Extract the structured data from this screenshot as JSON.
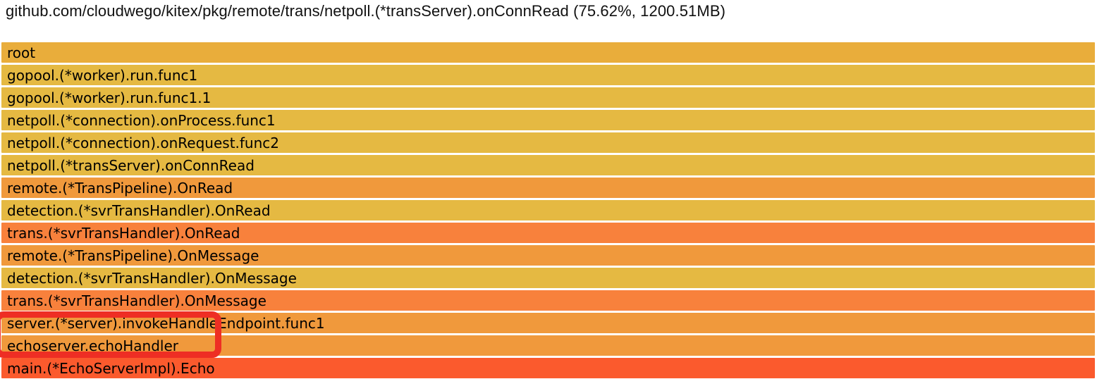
{
  "title": "github.com/cloudwego/kitex/pkg/remote/trans/netpoll.(*transServer).onConnRead (75.62%, 1200.51MB)",
  "colors": {
    "row_gold": "#e5b942",
    "row_root_gold": "#e9ad3b",
    "row_orange": "#f0993c",
    "row_deep_orange": "#f8813c",
    "row_red_orange": "#fb5a2d",
    "row_gap": "#f1ede0",
    "row_text": "#000000",
    "annotation_red": "#ee2e24",
    "background": "#ffffff"
  },
  "chart_data": {
    "type": "flamegraph",
    "title": "github.com/cloudwego/kitex/pkg/remote/trans/netpoll.(*transServer).onConnRead (75.62%, 1200.51MB)",
    "selected_frame": "github.com/cloudwego/kitex/pkg/remote/trans/netpoll.(*transServer).onConnRead",
    "selected_percent": 75.62,
    "selected_value": "1200.51MB",
    "orientation": "icicle-root-at-top",
    "legend_position": "none",
    "frames": [
      {
        "depth": 0,
        "label": "root",
        "width_pct": 100,
        "color": "#e9ad3b"
      },
      {
        "depth": 1,
        "label": "gopool.(*worker).run.func1",
        "width_pct": 100,
        "color": "#e5b942"
      },
      {
        "depth": 2,
        "label": "gopool.(*worker).run.func1.1",
        "width_pct": 100,
        "color": "#e5b942"
      },
      {
        "depth": 3,
        "label": "netpoll.(*connection).onProcess.func1",
        "width_pct": 100,
        "color": "#e5b942"
      },
      {
        "depth": 4,
        "label": "netpoll.(*connection).onRequest.func2",
        "width_pct": 100,
        "color": "#e5b942"
      },
      {
        "depth": 5,
        "label": "netpoll.(*transServer).onConnRead",
        "width_pct": 100,
        "color": "#e5b942"
      },
      {
        "depth": 6,
        "label": "remote.(*TransPipeline).OnRead",
        "width_pct": 100,
        "color": "#f0993c"
      },
      {
        "depth": 7,
        "label": "detection.(*svrTransHandler).OnRead",
        "width_pct": 100,
        "color": "#e5b942"
      },
      {
        "depth": 8,
        "label": "trans.(*svrTransHandler).OnRead",
        "width_pct": 100,
        "color": "#f8813c"
      },
      {
        "depth": 9,
        "label": "remote.(*TransPipeline).OnMessage",
        "width_pct": 100,
        "color": "#f0993c"
      },
      {
        "depth": 10,
        "label": "detection.(*svrTransHandler).OnMessage",
        "width_pct": 100,
        "color": "#e5b942"
      },
      {
        "depth": 11,
        "label": "trans.(*svrTransHandler).OnMessage",
        "width_pct": 100,
        "color": "#f8813c"
      },
      {
        "depth": 12,
        "label": "server.(*server).invokeHandleEndpoint.func1",
        "width_pct": 100,
        "color": "#f0993c"
      },
      {
        "depth": 13,
        "label": "echoserver.echoHandler",
        "width_pct": 100,
        "color": "#f0993c"
      },
      {
        "depth": 14,
        "label": "main.(*EchoServerImpl).Echo",
        "width_pct": 100,
        "color": "#fb5a2d"
      }
    ],
    "annotation": {
      "shape": "red-rounded-rectangle",
      "color": "#ee2e24",
      "clipped_left_edge": true,
      "highlighted_frames": [
        "server.(*server).invokeHandleEndpoint.func1",
        "echoserver.echoHandler"
      ]
    }
  }
}
